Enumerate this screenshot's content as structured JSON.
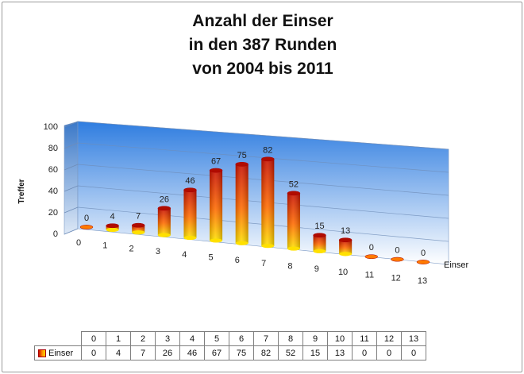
{
  "chart_data": {
    "type": "bar",
    "title_lines": [
      "Anzahl der Einser",
      "in den 387 Runden",
      "von 2004 bis 2011"
    ],
    "ylabel": "Treffer",
    "xlabel": "Einser",
    "ylim": [
      0,
      100
    ],
    "yticks": [
      0,
      20,
      40,
      60,
      80,
      100
    ],
    "categories": [
      "0",
      "1",
      "2",
      "3",
      "4",
      "5",
      "6",
      "7",
      "8",
      "9",
      "10",
      "11",
      "12",
      "13"
    ],
    "series": [
      {
        "name": "Einser",
        "values": [
          0,
          4,
          7,
          26,
          46,
          67,
          75,
          82,
          52,
          15,
          13,
          0,
          0,
          0
        ]
      }
    ],
    "grid": true,
    "legend": "data-table",
    "colors": {
      "bar_top": "#c81000",
      "bar_mid": "#ff6a00",
      "bar_bottom": "#ffe000",
      "wall_top": "#2f7de0",
      "wall_bottom": "#ffffff"
    }
  }
}
